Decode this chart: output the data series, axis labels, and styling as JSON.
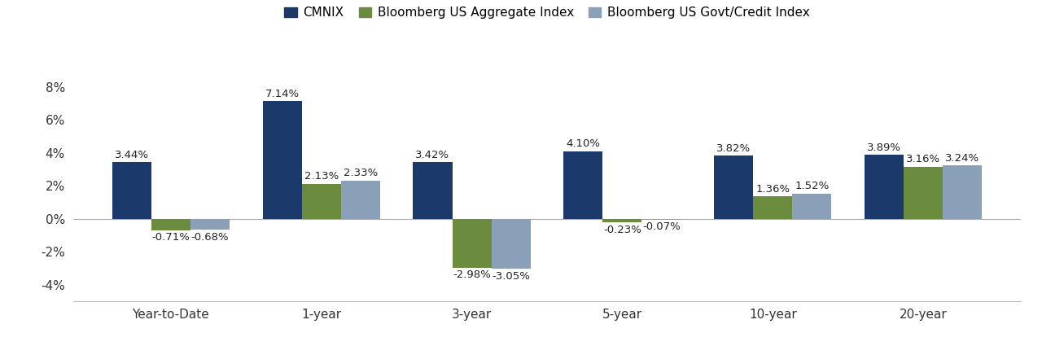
{
  "categories": [
    "Year-to-Date",
    "1-year",
    "3-year",
    "5-year",
    "10-year",
    "20-year"
  ],
  "series": {
    "CMNIX": [
      3.44,
      7.14,
      3.42,
      4.1,
      3.82,
      3.89
    ],
    "Bloomberg US Aggregate Index": [
      -0.71,
      2.13,
      -2.98,
      -0.23,
      1.36,
      3.16
    ],
    "Bloomberg US Govt/Credit Index": [
      -0.68,
      2.33,
      -3.05,
      -0.07,
      1.52,
      3.24
    ]
  },
  "colors": {
    "CMNIX": "#1B3A6B",
    "Bloomberg US Aggregate Index": "#6B8C3E",
    "Bloomberg US Govt/Credit Index": "#8A9FB8"
  },
  "ylim": [
    -5.0,
    9.5
  ],
  "yticks": [
    -4,
    -2,
    0,
    2,
    4,
    6,
    8
  ],
  "bar_width": 0.26,
  "label_fontsize": 9.5,
  "tick_fontsize": 11,
  "legend_fontsize": 11,
  "background_color": "#ffffff"
}
